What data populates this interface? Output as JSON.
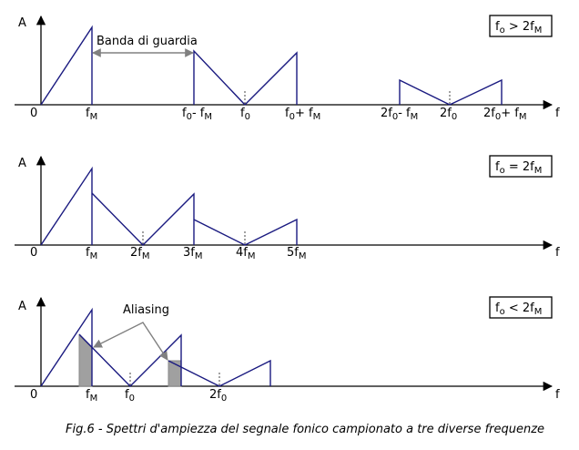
{
  "axis_y": "A",
  "axis_x": "f",
  "origin": "0",
  "caption": "Fig.6 - Spettri d'ampiezza del segnale fonico campionato a tre diverse frequenze",
  "panel1": {
    "condition": {
      "base": "f",
      "sub": "o",
      "op": " > 2f",
      "sub2": "M"
    },
    "annotation": "Banda di guardia",
    "ticks": [
      {
        "base": "f",
        "sub": "M"
      },
      {
        "base": "f",
        "sub": "0",
        "rest": "- f",
        "sub2": "M"
      },
      {
        "base": "f",
        "sub": "0"
      },
      {
        "base": "f",
        "sub": "0",
        "rest": "+ f",
        "sub2": "M"
      },
      {
        "base": "2f",
        "sub": "0",
        "rest": "- f",
        "sub2": "M"
      },
      {
        "base": "2f",
        "sub": "0"
      },
      {
        "base": "2f",
        "sub": "0",
        "rest": "+ f",
        "sub2": "M"
      }
    ]
  },
  "panel2": {
    "condition": {
      "base": "f",
      "sub": "o",
      "op": " = 2f",
      "sub2": "M"
    },
    "ticks": [
      {
        "base": "f",
        "sub": "M"
      },
      {
        "base": "2f",
        "sub": "M"
      },
      {
        "base": "3f",
        "sub": "M"
      },
      {
        "base": "4f",
        "sub": "M"
      },
      {
        "base": "5f",
        "sub": "M"
      }
    ]
  },
  "panel3": {
    "condition": {
      "base": "f",
      "sub": "o",
      "op": " < 2f",
      "sub2": "M"
    },
    "annotation": "Aliasing",
    "ticks": [
      {
        "base": "f",
        "sub": "M"
      },
      {
        "base": "f",
        "sub": "0"
      },
      {
        "base": "2f",
        "sub": "0"
      }
    ]
  },
  "colors": {
    "spectrum": "#1a1a80",
    "axis": "#000000",
    "annotation": "#808080",
    "aliasing_fill": "#a0a0a0"
  }
}
